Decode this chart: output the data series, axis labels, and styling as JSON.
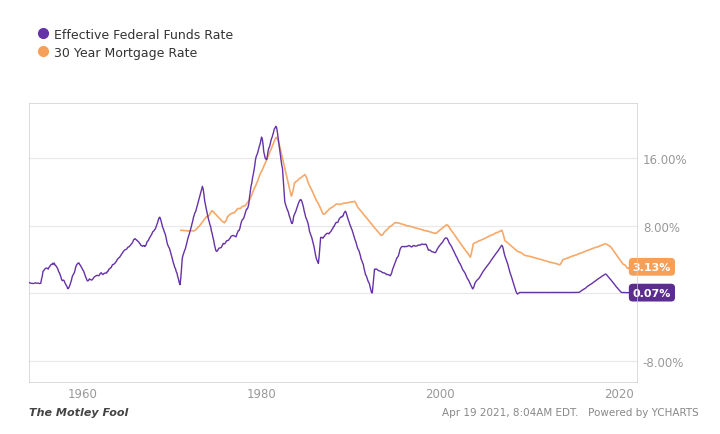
{
  "legend_labels": [
    "Effective Federal Funds Rate",
    "30 Year Mortgage Rate"
  ],
  "line_colors": [
    "#6632a8",
    "#f5a05a"
  ],
  "end_labels": [
    "0.07%",
    "3.13%"
  ],
  "end_label_colors": [
    "#5b2d8e",
    "#f5a05a"
  ],
  "y_ticks": [
    -8.0,
    0.0,
    8.0,
    16.0
  ],
  "y_tick_labels": [
    "-8.00%",
    "8.00%",
    "16.00%"
  ],
  "x_ticks": [
    1960,
    1980,
    2000,
    2020
  ],
  "ylim": [
    -10.5,
    22.5
  ],
  "xlim_start": 1954.0,
  "xlim_end": 2022.0,
  "background_color": "#ffffff",
  "plot_border_color": "#cccccc",
  "grid_color": "#e8e8e8",
  "footer_left": "The Motley Fool",
  "footer_right": "Apr 19 2021, 8:04AM EDT.   Powered by YCHARTS",
  "tick_color": "#999999",
  "legend_text_color": "#333333"
}
